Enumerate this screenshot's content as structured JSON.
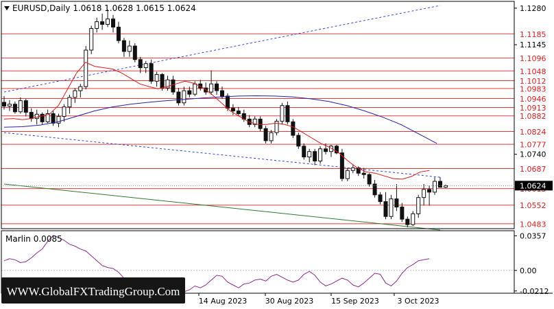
{
  "header": {
    "arrow_icon": "triangle-down-icon",
    "title": "EURUSD,Daily  1.0618  1.0628  1.0615  1.0624"
  },
  "watermark": "WWW.GlobalFXTradingGroup.Com",
  "price_axis": {
    "ticks": [
      "1.1280",
      "1.1145",
      "1.0740"
    ],
    "current_price": "1.0624"
  },
  "date_axis": [
    "14 Aug 2023",
    "30 Aug 2023",
    "15 Sep 2023",
    "3 Oct 2023"
  ],
  "indicator": {
    "name": "Marlin 0.0085",
    "ticks": [
      "0.0357",
      "0.00",
      "-0.0212"
    ]
  },
  "colors": {
    "background": "#ffffff",
    "level_line": "#e23b3b",
    "level_label": "#d62020",
    "red_ma": "#d81b1b",
    "blue_ma": "#2121a6",
    "channel": "#2c46d8",
    "green_line": "#2f7a2f",
    "marlin": "#8e2b8e",
    "candle": "#111111"
  },
  "chart_data": {
    "type": "candlestick",
    "instrument": "EURUSD",
    "timeframe": "Daily",
    "ohlc_last": {
      "open": 1.0618,
      "high": 1.0628,
      "low": 1.0615,
      "close": 1.0624
    },
    "y_range": [
      1.0465,
      1.13
    ],
    "levels": [
      1.1185,
      1.1096,
      1.1048,
      1.1012,
      1.0983,
      1.0946,
      1.0913,
      1.0882,
      1.0824,
      1.0777,
      1.0687,
      1.0613,
      1.0552,
      1.0483
    ],
    "candles": [
      [
        1.0932,
        1.0955,
        1.0905,
        1.0918
      ],
      [
        1.0918,
        1.094,
        1.09,
        1.0925
      ],
      [
        1.0925,
        1.0935,
        1.089,
        1.0897
      ],
      [
        1.0897,
        1.095,
        1.089,
        1.0938
      ],
      [
        1.0938,
        1.0945,
        1.088,
        1.0895
      ],
      [
        1.0895,
        1.091,
        1.086,
        1.0872
      ],
      [
        1.0872,
        1.0905,
        1.085,
        1.0888
      ],
      [
        1.0888,
        1.0895,
        1.085,
        1.086
      ],
      [
        1.086,
        1.0905,
        1.0855,
        1.089
      ],
      [
        1.089,
        1.09,
        1.0845,
        1.0855
      ],
      [
        1.0855,
        1.089,
        1.084,
        1.088
      ],
      [
        1.088,
        1.0925,
        1.086,
        1.0915
      ],
      [
        1.0915,
        1.096,
        1.089,
        1.095
      ],
      [
        1.095,
        1.0985,
        1.093,
        1.0975
      ],
      [
        1.0975,
        1.1,
        1.095,
        1.099
      ],
      [
        1.099,
        1.114,
        1.098,
        1.1125
      ],
      [
        1.1125,
        1.1215,
        1.111,
        1.1205
      ],
      [
        1.1205,
        1.1245,
        1.119,
        1.123
      ],
      [
        1.123,
        1.126,
        1.12,
        1.122
      ],
      [
        1.122,
        1.1275,
        1.121,
        1.124
      ],
      [
        1.124,
        1.1255,
        1.119,
        1.121
      ],
      [
        1.121,
        1.123,
        1.115,
        1.116
      ],
      [
        1.116,
        1.117,
        1.11,
        1.112
      ],
      [
        1.112,
        1.116,
        1.11,
        1.114
      ],
      [
        1.114,
        1.115,
        1.108,
        1.109
      ],
      [
        1.109,
        1.11,
        1.104,
        1.106
      ],
      [
        1.106,
        1.1085,
        1.104,
        1.1075
      ],
      [
        1.1075,
        1.109,
        1.1,
        1.101
      ],
      [
        1.101,
        1.1045,
        1.099,
        1.1035
      ],
      [
        1.1035,
        1.104,
        1.0975,
        1.0985
      ],
      [
        1.0985,
        1.103,
        1.0975,
        1.1015
      ],
      [
        1.1015,
        1.103,
        1.096,
        1.097
      ],
      [
        1.097,
        1.0985,
        1.092,
        1.093
      ],
      [
        1.093,
        1.099,
        1.092,
        1.0975
      ],
      [
        1.0975,
        1.099,
        1.095,
        1.0962
      ],
      [
        1.0962,
        1.101,
        1.0955,
        1.1
      ],
      [
        1.1,
        1.1015,
        1.0975,
        1.0985
      ],
      [
        1.0985,
        1.1005,
        1.096,
        1.097
      ],
      [
        1.097,
        1.105,
        1.096,
        1.1
      ],
      [
        1.1,
        1.101,
        1.096,
        1.0975
      ],
      [
        1.0975,
        1.099,
        1.0945,
        1.0955
      ],
      [
        1.0955,
        1.0965,
        1.09,
        1.091
      ],
      [
        1.091,
        1.0925,
        1.0885,
        1.09
      ],
      [
        1.09,
        1.0915,
        1.088,
        1.089
      ],
      [
        1.089,
        1.0905,
        1.086,
        1.087
      ],
      [
        1.087,
        1.0885,
        1.084,
        1.085
      ],
      [
        1.085,
        1.088,
        1.084,
        1.087
      ],
      [
        1.087,
        1.088,
        1.0825,
        1.0835
      ],
      [
        1.0835,
        1.0845,
        1.078,
        1.079
      ],
      [
        1.079,
        1.083,
        1.078,
        1.082
      ],
      [
        1.082,
        1.087,
        1.081,
        1.0862
      ],
      [
        1.0862,
        1.093,
        1.085,
        1.092
      ],
      [
        1.092,
        1.0935,
        1.085,
        1.086
      ],
      [
        1.086,
        1.087,
        1.08,
        1.081
      ],
      [
        1.081,
        1.082,
        1.076,
        1.077
      ],
      [
        1.077,
        1.078,
        1.072,
        1.073
      ],
      [
        1.073,
        1.076,
        1.071,
        1.075
      ],
      [
        1.075,
        1.076,
        1.07,
        1.0715
      ],
      [
        1.0715,
        1.077,
        1.0705,
        1.076
      ],
      [
        1.076,
        1.078,
        1.074,
        1.075
      ],
      [
        1.075,
        1.0775,
        1.073,
        1.077
      ],
      [
        1.077,
        1.0775,
        1.074,
        1.0745
      ],
      [
        1.0745,
        1.076,
        1.064,
        1.065
      ],
      [
        1.065,
        1.069,
        1.064,
        1.068
      ],
      [
        1.068,
        1.07,
        1.067,
        1.069
      ],
      [
        1.069,
        1.0695,
        1.066,
        1.067
      ],
      [
        1.067,
        1.069,
        1.065,
        1.0665
      ],
      [
        1.0665,
        1.067,
        1.062,
        1.063
      ],
      [
        1.063,
        1.0645,
        1.058,
        1.059
      ],
      [
        1.059,
        1.06,
        1.0555,
        1.0565
      ],
      [
        1.0565,
        1.06,
        1.05,
        1.051
      ],
      [
        1.051,
        1.059,
        1.05,
        1.0575
      ],
      [
        1.0575,
        1.063,
        1.053,
        1.0545
      ],
      [
        1.0545,
        1.056,
        1.049,
        1.05
      ],
      [
        1.05,
        1.051,
        1.047,
        1.048
      ],
      [
        1.048,
        1.053,
        1.0475,
        1.052
      ],
      [
        1.052,
        1.059,
        1.0505,
        1.058
      ],
      [
        1.058,
        1.063,
        1.055,
        1.061
      ],
      [
        1.061,
        1.0625,
        1.055,
        1.06
      ],
      [
        1.06,
        1.0655,
        1.059,
        1.064
      ],
      [
        1.064,
        1.0655,
        1.062,
        1.0618
      ],
      [
        1.0618,
        1.0628,
        1.0615,
        1.0624
      ]
    ],
    "red_ma": [
      1.087,
      1.0872,
      1.0868,
      1.0872,
      1.088,
      1.0888,
      1.092,
      1.098,
      1.104,
      1.108,
      1.1065,
      1.106,
      1.1055,
      1.104,
      1.102,
      1.1,
      1.099,
      1.0982,
      1.099,
      1.1,
      1.101,
      1.1002,
      1.0985,
      1.096,
      1.093,
      1.09,
      1.088,
      1.086,
      1.085,
      1.085,
      1.0855,
      1.085,
      1.084,
      1.082,
      1.08,
      1.078,
      1.0765,
      1.0745,
      1.0715,
      1.069,
      1.0675,
      1.067,
      1.066,
      1.065,
      1.0648,
      1.0658,
      1.0675,
      1.068
    ],
    "blue_ma": [
      1.084,
      1.0842,
      1.0848,
      1.086,
      1.088,
      1.09,
      1.0915,
      1.0925,
      1.0932,
      1.0938,
      1.0943,
      1.0948,
      1.0952,
      1.0955,
      1.0956,
      1.0955,
      1.0952,
      1.0945,
      1.0935,
      1.092,
      1.09,
      1.0877,
      1.085,
      1.0815,
      1.078
    ],
    "channel_upper": [
      [
        0,
        1.097
      ],
      [
        125,
        1.129
      ]
    ],
    "channel_lower": [
      [
        0,
        1.082
      ],
      [
        125,
        1.0655
      ]
    ],
    "green_line": [
      [
        0,
        1.063
      ],
      [
        125,
        1.046
      ]
    ],
    "marlin_series": [
      0.01,
      0.012,
      0.011,
      0.008,
      0.009,
      0.013,
      0.018,
      0.022,
      0.03,
      0.036,
      0.034,
      0.031,
      0.027,
      0.025,
      0.022,
      0.02,
      0.015,
      0.01,
      0.005,
      0.003,
      0.002,
      -0.002,
      -0.008,
      -0.01,
      -0.013,
      -0.011,
      -0.014,
      -0.018,
      -0.019,
      -0.021,
      -0.019,
      -0.017,
      -0.02,
      -0.022,
      -0.02,
      -0.016,
      -0.018,
      -0.015,
      -0.01,
      -0.005,
      -0.006,
      -0.012,
      -0.015,
      -0.018,
      -0.014,
      -0.013,
      -0.01,
      -0.009,
      -0.011,
      -0.006,
      -0.004,
      -0.007,
      -0.01,
      -0.012,
      -0.01,
      -0.004,
      -0.001,
      -0.005,
      -0.012,
      -0.016,
      -0.014,
      -0.011,
      -0.008,
      -0.01,
      -0.015,
      -0.017,
      -0.013,
      -0.008,
      -0.003,
      -0.004,
      -0.013,
      -0.016,
      -0.011,
      -0.003,
      0.003,
      0.006,
      0.01,
      0.011,
      0.012
    ],
    "marlin_range": [
      -0.0235,
      0.0395
    ]
  }
}
